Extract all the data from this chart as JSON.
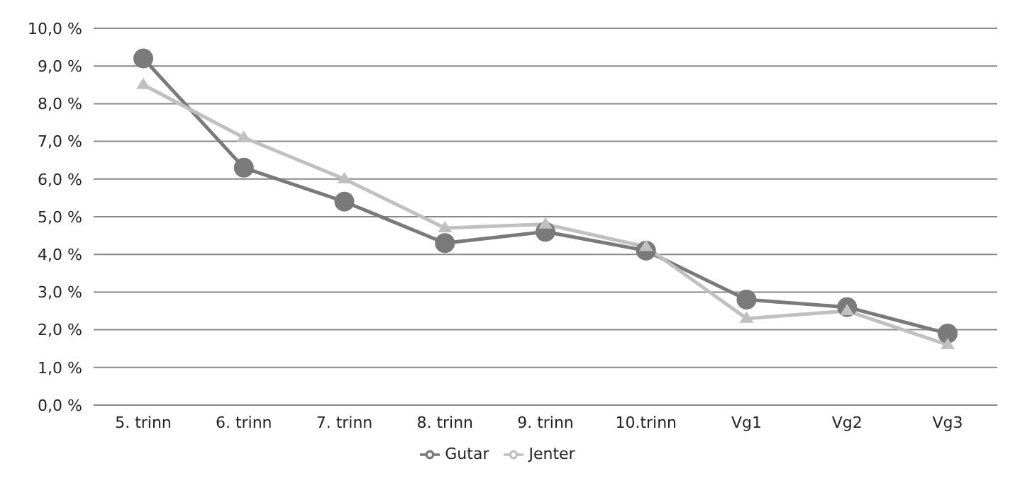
{
  "chart_data": {
    "type": "line",
    "categories": [
      "5. trinn",
      "6. trinn",
      "7. trinn",
      "8. trinn",
      "9. trinn",
      "10.trinn",
      "Vg1",
      "Vg2",
      "Vg3"
    ],
    "series": [
      {
        "name": "Gutar",
        "color": "#7a7a7a",
        "marker": "circle",
        "values": [
          9.2,
          6.3,
          5.4,
          4.3,
          4.6,
          4.1,
          2.8,
          2.6,
          1.9
        ]
      },
      {
        "name": "Jenter",
        "color": "#c0c0c0",
        "marker": "triangle",
        "values": [
          8.5,
          7.1,
          6.0,
          4.7,
          4.8,
          4.2,
          2.3,
          2.5,
          1.6
        ]
      }
    ],
    "ylim": [
      0,
      10
    ],
    "yticks": [
      {
        "value": 0,
        "label": "0,0 %"
      },
      {
        "value": 1,
        "label": "1,0 %"
      },
      {
        "value": 2,
        "label": "2,0 %"
      },
      {
        "value": 3,
        "label": "3,0 %"
      },
      {
        "value": 4,
        "label": "4,0 %"
      },
      {
        "value": 5,
        "label": "5,0 %"
      },
      {
        "value": 6,
        "label": "6,0 %"
      },
      {
        "value": 7,
        "label": "7,0 %"
      },
      {
        "value": 8,
        "label": "8,0 %"
      },
      {
        "value": 9,
        "label": "9,0 %"
      },
      {
        "value": 10,
        "label": "10,0 %"
      }
    ],
    "grid": "y",
    "legend": "bottom",
    "line_style": "solid"
  }
}
